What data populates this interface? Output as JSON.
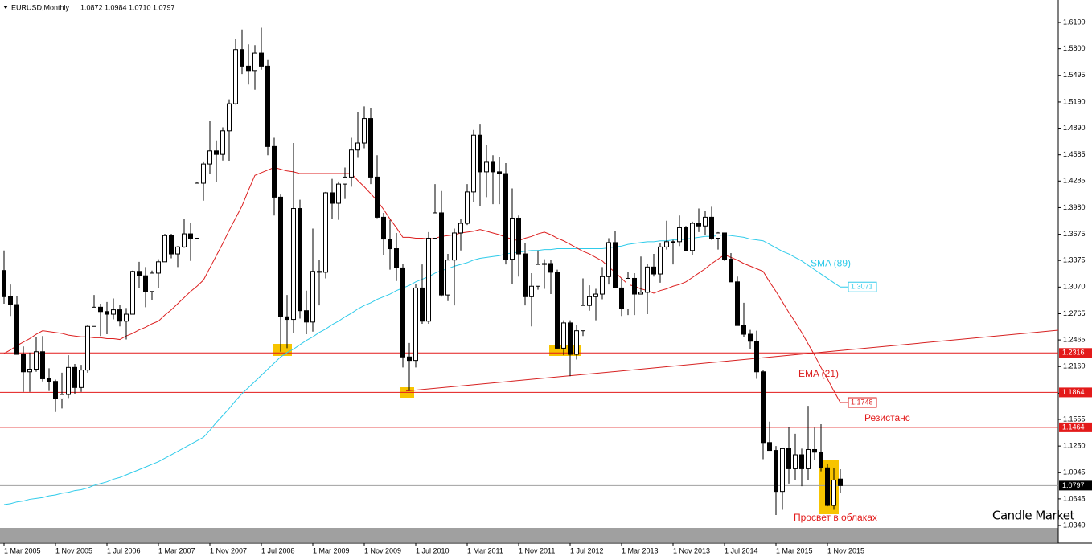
{
  "chart_data": {
    "type": "candlestick",
    "header": {
      "symbol": "EURUSD,Monthly",
      "ohlc": [
        "1.0872",
        "1.0984",
        "1.0710",
        "1.0797"
      ]
    },
    "categories": [
      "1 Mar 2005",
      null,
      null,
      null,
      null,
      null,
      null,
      null,
      "1 Nov 2005",
      null,
      null,
      null,
      null,
      null,
      null,
      null,
      "1 Jul 2006",
      null,
      null,
      null,
      null,
      null,
      null,
      null,
      "1 Mar 2007",
      null,
      null,
      null,
      null,
      null,
      null,
      null,
      "1 Nov 2007",
      null,
      null,
      null,
      null,
      null,
      null,
      null,
      "1 Jul 2008",
      null,
      null,
      null,
      null,
      null,
      null,
      null,
      "1 Mar 2009",
      null,
      null,
      null,
      null,
      null,
      null,
      null,
      "1 Nov 2009",
      null,
      null,
      null,
      null,
      null,
      null,
      null,
      "1 Jul 2010",
      null,
      null,
      null,
      null,
      null,
      null,
      null,
      "1 Mar 2011",
      null,
      null,
      null,
      null,
      null,
      null,
      null,
      "1 Nov 2011",
      null,
      null,
      null,
      null,
      null,
      null,
      null,
      "1 Jul 2012",
      null,
      null,
      null,
      null,
      null,
      null,
      null,
      "1 Mar 2013",
      null,
      null,
      null,
      null,
      null,
      null,
      null,
      "1 Nov 2013",
      null,
      null,
      null,
      null,
      null,
      null,
      null,
      "1 Jul 2014",
      null,
      null,
      null,
      null,
      null,
      null,
      null,
      "1 Mar 2015",
      null,
      null,
      null,
      null,
      null,
      null,
      null,
      "1 Nov 2015",
      null,
      null
    ],
    "candles": [
      [
        1.326,
        1.349,
        1.288,
        1.296
      ],
      [
        1.296,
        1.31,
        1.274,
        1.287
      ],
      [
        1.287,
        1.297,
        1.23,
        1.23
      ],
      [
        1.23,
        1.239,
        1.187,
        1.21
      ],
      [
        1.21,
        1.232,
        1.187,
        1.213
      ],
      [
        1.213,
        1.25,
        1.21,
        1.233
      ],
      [
        1.233,
        1.251,
        1.199,
        1.202
      ],
      [
        1.202,
        1.214,
        1.188,
        1.199
      ],
      [
        1.199,
        1.201,
        1.164,
        1.179
      ],
      [
        1.179,
        1.209,
        1.168,
        1.184
      ],
      [
        1.184,
        1.229,
        1.18,
        1.215
      ],
      [
        1.215,
        1.219,
        1.184,
        1.192
      ],
      [
        1.192,
        1.218,
        1.187,
        1.212
      ],
      [
        1.212,
        1.264,
        1.209,
        1.262
      ],
      [
        1.262,
        1.298,
        1.262,
        1.284
      ],
      [
        1.284,
        1.288,
        1.251,
        1.279
      ],
      [
        1.279,
        1.29,
        1.253,
        1.276
      ],
      [
        1.276,
        1.294,
        1.27,
        1.281
      ],
      [
        1.281,
        1.287,
        1.262,
        1.268
      ],
      [
        1.268,
        1.283,
        1.247,
        1.276
      ],
      [
        1.276,
        1.326,
        1.277,
        1.325
      ],
      [
        1.325,
        1.336,
        1.306,
        1.32
      ],
      [
        1.32,
        1.33,
        1.284,
        1.302
      ],
      [
        1.302,
        1.326,
        1.292,
        1.323
      ],
      [
        1.323,
        1.339,
        1.306,
        1.336
      ],
      [
        1.336,
        1.368,
        1.336,
        1.366
      ],
      [
        1.366,
        1.368,
        1.34,
        1.345
      ],
      [
        1.345,
        1.354,
        1.33,
        1.353
      ],
      [
        1.353,
        1.385,
        1.352,
        1.368
      ],
      [
        1.368,
        1.38,
        1.337,
        1.363
      ],
      [
        1.363,
        1.427,
        1.362,
        1.426
      ],
      [
        1.426,
        1.45,
        1.406,
        1.448
      ],
      [
        1.448,
        1.497,
        1.437,
        1.463
      ],
      [
        1.463,
        1.475,
        1.427,
        1.459
      ],
      [
        1.459,
        1.49,
        1.452,
        1.486
      ],
      [
        1.486,
        1.522,
        1.451,
        1.517
      ],
      [
        1.517,
        1.591,
        1.516,
        1.579
      ],
      [
        1.579,
        1.602,
        1.551,
        1.56
      ],
      [
        1.56,
        1.585,
        1.539,
        1.555
      ],
      [
        1.555,
        1.584,
        1.533,
        1.575
      ],
      [
        1.575,
        1.604,
        1.556,
        1.56
      ],
      [
        1.56,
        1.567,
        1.458,
        1.468
      ],
      [
        1.468,
        1.478,
        1.389,
        1.41
      ],
      [
        1.41,
        1.413,
        1.233,
        1.273
      ],
      [
        1.273,
        1.298,
        1.237,
        1.27
      ],
      [
        1.27,
        1.472,
        1.254,
        1.397
      ],
      [
        1.397,
        1.407,
        1.271,
        1.28
      ],
      [
        1.28,
        1.303,
        1.253,
        1.267
      ],
      [
        1.267,
        1.374,
        1.256,
        1.325
      ],
      [
        1.325,
        1.338,
        1.286,
        1.324
      ],
      [
        1.324,
        1.416,
        1.317,
        1.415
      ],
      [
        1.415,
        1.431,
        1.385,
        1.403
      ],
      [
        1.403,
        1.428,
        1.384,
        1.425
      ],
      [
        1.425,
        1.444,
        1.408,
        1.433
      ],
      [
        1.433,
        1.478,
        1.422,
        1.464
      ],
      [
        1.464,
        1.507,
        1.455,
        1.472
      ],
      [
        1.472,
        1.514,
        1.466,
        1.5
      ],
      [
        1.5,
        1.512,
        1.425,
        1.433
      ],
      [
        1.433,
        1.458,
        1.386,
        1.387
      ],
      [
        1.387,
        1.392,
        1.344,
        1.362
      ],
      [
        1.362,
        1.384,
        1.327,
        1.351
      ],
      [
        1.351,
        1.369,
        1.314,
        1.329
      ],
      [
        1.329,
        1.334,
        1.215,
        1.227
      ],
      [
        1.227,
        1.243,
        1.188,
        1.223
      ],
      [
        1.223,
        1.311,
        1.215,
        1.306
      ],
      [
        1.306,
        1.333,
        1.265,
        1.268
      ],
      [
        1.268,
        1.37,
        1.265,
        1.363
      ],
      [
        1.363,
        1.425,
        1.368,
        1.392
      ],
      [
        1.392,
        1.417,
        1.296,
        1.298
      ],
      [
        1.298,
        1.345,
        1.291,
        1.338
      ],
      [
        1.338,
        1.374,
        1.286,
        1.369
      ],
      [
        1.369,
        1.385,
        1.349,
        1.38
      ],
      [
        1.38,
        1.425,
        1.378,
        1.416
      ],
      [
        1.416,
        1.487,
        1.404,
        1.481
      ],
      [
        1.481,
        1.494,
        1.4,
        1.439
      ],
      [
        1.439,
        1.47,
        1.41,
        1.45
      ],
      [
        1.45,
        1.458,
        1.402,
        1.439
      ],
      [
        1.439,
        1.456,
        1.402,
        1.437
      ],
      [
        1.437,
        1.449,
        1.333,
        1.339
      ],
      [
        1.339,
        1.42,
        1.311,
        1.386
      ],
      [
        1.386,
        1.389,
        1.319,
        1.345
      ],
      [
        1.345,
        1.357,
        1.286,
        1.296
      ],
      [
        1.296,
        1.323,
        1.262,
        1.308
      ],
      [
        1.308,
        1.349,
        1.304,
        1.333
      ],
      [
        1.333,
        1.339,
        1.305,
        1.334
      ],
      [
        1.334,
        1.338,
        1.299,
        1.324
      ],
      [
        1.324,
        1.327,
        1.236,
        1.237
      ],
      [
        1.237,
        1.269,
        1.229,
        1.266
      ],
      [
        1.266,
        1.269,
        1.205,
        1.23
      ],
      [
        1.23,
        1.264,
        1.224,
        1.257
      ],
      [
        1.257,
        1.317,
        1.251,
        1.286
      ],
      [
        1.286,
        1.309,
        1.28,
        1.296
      ],
      [
        1.296,
        1.305,
        1.269,
        1.299
      ],
      [
        1.299,
        1.33,
        1.293,
        1.319
      ],
      [
        1.319,
        1.363,
        1.31,
        1.358
      ],
      [
        1.358,
        1.371,
        1.306,
        1.306
      ],
      [
        1.306,
        1.317,
        1.274,
        1.282
      ],
      [
        1.282,
        1.324,
        1.275,
        1.317
      ],
      [
        1.317,
        1.323,
        1.275,
        1.299
      ],
      [
        1.299,
        1.342,
        1.299,
        1.301
      ],
      [
        1.301,
        1.334,
        1.276,
        1.33
      ],
      [
        1.33,
        1.345,
        1.319,
        1.322
      ],
      [
        1.322,
        1.357,
        1.312,
        1.353
      ],
      [
        1.353,
        1.383,
        1.35,
        1.359
      ],
      [
        1.359,
        1.361,
        1.333,
        1.359
      ],
      [
        1.359,
        1.389,
        1.354,
        1.375
      ],
      [
        1.375,
        1.377,
        1.348,
        1.349
      ],
      [
        1.349,
        1.382,
        1.344,
        1.38
      ],
      [
        1.38,
        1.397,
        1.37,
        1.377
      ],
      [
        1.377,
        1.394,
        1.367,
        1.387
      ],
      [
        1.387,
        1.399,
        1.361,
        1.363
      ],
      [
        1.363,
        1.37,
        1.35,
        1.369
      ],
      [
        1.369,
        1.369,
        1.337,
        1.339
      ],
      [
        1.339,
        1.346,
        1.313,
        1.313
      ],
      [
        1.313,
        1.319,
        1.263,
        1.263
      ],
      [
        1.263,
        1.289,
        1.25,
        1.253
      ],
      [
        1.253,
        1.258,
        1.236,
        1.245
      ],
      [
        1.245,
        1.257,
        1.202,
        1.21
      ],
      [
        1.21,
        1.212,
        1.11,
        1.129
      ],
      [
        1.129,
        1.153,
        1.12,
        1.12
      ],
      [
        1.12,
        1.125,
        1.046,
        1.073
      ],
      [
        1.073,
        1.122,
        1.052,
        1.122
      ],
      [
        1.122,
        1.147,
        1.082,
        1.099
      ],
      [
        1.099,
        1.139,
        1.086,
        1.115
      ],
      [
        1.115,
        1.122,
        1.079,
        1.099
      ],
      [
        1.099,
        1.171,
        1.086,
        1.121
      ],
      [
        1.121,
        1.146,
        1.109,
        1.118
      ],
      [
        1.118,
        1.15,
        1.096,
        1.1
      ],
      [
        1.1,
        1.104,
        1.056,
        1.057
      ],
      [
        1.057,
        1.1,
        1.052,
        1.086
      ],
      [
        1.0872,
        1.0984,
        1.071,
        1.0797
      ]
    ],
    "series": [
      {
        "name": "SMA (89)",
        "color": "#2fcbea",
        "values": [
          1.058,
          1.059,
          1.061,
          1.062,
          1.064,
          1.065,
          1.066,
          1.068,
          1.069,
          1.071,
          1.072,
          1.074,
          1.075,
          1.077,
          1.08,
          1.082,
          1.084,
          1.087,
          1.089,
          1.092,
          1.095,
          1.098,
          1.101,
          1.104,
          1.107,
          1.111,
          1.115,
          1.119,
          1.123,
          1.127,
          1.131,
          1.135,
          1.143,
          1.152,
          1.16,
          1.168,
          1.177,
          1.185,
          1.192,
          1.199,
          1.206,
          1.213,
          1.22,
          1.227,
          1.232,
          1.236,
          1.241,
          1.246,
          1.25,
          1.255,
          1.259,
          1.264,
          1.268,
          1.273,
          1.277,
          1.282,
          1.286,
          1.289,
          1.293,
          1.296,
          1.299,
          1.303,
          1.306,
          1.309,
          1.313,
          1.316,
          1.319,
          1.323,
          1.326,
          1.328,
          1.331,
          1.333,
          1.335,
          1.338,
          1.34,
          1.341,
          1.342,
          1.343,
          1.345,
          1.346,
          1.347,
          1.348,
          1.349,
          1.349,
          1.35,
          1.35,
          1.351,
          1.351,
          1.351,
          1.351,
          1.351,
          1.351,
          1.351,
          1.351,
          1.352,
          1.353,
          1.354,
          1.356,
          1.357,
          1.358,
          1.359,
          1.359,
          1.36,
          1.36,
          1.361,
          1.361,
          1.362,
          1.363,
          1.364,
          1.365,
          1.365,
          1.366,
          1.367,
          1.366,
          1.365,
          1.364,
          1.362,
          1.361,
          1.36,
          1.356,
          1.352,
          1.348,
          1.345,
          1.341,
          1.337,
          1.332,
          1.327,
          1.322,
          1.317,
          1.312,
          1.3071
        ]
      },
      {
        "name": "EMA (21)",
        "color": "#dc1f1f",
        "values": [
          1.231,
          1.235,
          1.24,
          1.244,
          1.248,
          1.253,
          1.257,
          1.256,
          1.255,
          1.254,
          1.252,
          1.251,
          1.25,
          1.25,
          1.249,
          1.249,
          1.248,
          1.248,
          1.247,
          1.251,
          1.254,
          1.258,
          1.261,
          1.265,
          1.268,
          1.275,
          1.281,
          1.288,
          1.295,
          1.302,
          1.308,
          1.315,
          1.329,
          1.343,
          1.357,
          1.372,
          1.386,
          1.4,
          1.418,
          1.435,
          1.438,
          1.441,
          1.444,
          1.442,
          1.44,
          1.439,
          1.437,
          1.437,
          1.437,
          1.437,
          1.437,
          1.437,
          1.437,
          1.437,
          1.437,
          1.429,
          1.422,
          1.414,
          1.406,
          1.396,
          1.385,
          1.375,
          1.364,
          1.364,
          1.363,
          1.363,
          1.362,
          1.363,
          1.365,
          1.366,
          1.367,
          1.369,
          1.37,
          1.371,
          1.373,
          1.371,
          1.369,
          1.367,
          1.364,
          1.362,
          1.36,
          1.363,
          1.365,
          1.368,
          1.37,
          1.367,
          1.363,
          1.36,
          1.356,
          1.352,
          1.348,
          1.345,
          1.341,
          1.337,
          1.33,
          1.324,
          1.317,
          1.31,
          1.308,
          1.305,
          1.303,
          1.3,
          1.303,
          1.305,
          1.308,
          1.31,
          1.313,
          1.318,
          1.323,
          1.328,
          1.334,
          1.339,
          1.344,
          1.341,
          1.338,
          1.334,
          1.331,
          1.328,
          1.325,
          1.313,
          1.302,
          1.29,
          1.278,
          1.267,
          1.255,
          1.242,
          1.229,
          1.215,
          1.202,
          1.188,
          1.1748
        ]
      }
    ],
    "levels": [
      {
        "value": 1.2316,
        "color": "#e31a1a"
      },
      {
        "value": 1.1864,
        "color": "#e31a1a"
      },
      {
        "value": 1.1464,
        "color": "#e31a1a"
      }
    ],
    "trendline": [
      1.188,
      1.2576
    ],
    "annotations": [
      "Резистанс",
      "Просвет в облаках",
      "Candle Market"
    ],
    "ylim": [
      1.0322,
      1.6358
    ],
    "yticks": [
      {
        "value": 1.61,
        "label": "1.6100"
      },
      {
        "value": 1.58,
        "label": "1.5800"
      },
      {
        "value": 1.5495,
        "label": "1.5495"
      },
      {
        "value": 1.519,
        "label": "1.5190"
      },
      {
        "value": 1.489,
        "label": "1.4890"
      },
      {
        "value": 1.4585,
        "label": "1.4585"
      },
      {
        "value": 1.4285,
        "label": "1.4285"
      },
      {
        "value": 1.398,
        "label": "1.3980"
      },
      {
        "value": 1.3675,
        "label": "1.3675"
      },
      {
        "value": 1.3375,
        "label": "1.3375"
      },
      {
        "value": 1.307,
        "label": "1.3070"
      },
      {
        "value": 1.2765,
        "label": "1.2765"
      },
      {
        "value": 1.2465,
        "label": "1.2465"
      },
      {
        "value": 1.216,
        "label": "1.2160"
      },
      {
        "value": 1.1855,
        "label": "1.1855"
      },
      {
        "value": 1.1555,
        "label": "1.1555"
      },
      {
        "value": 1.125,
        "label": "1.1250"
      },
      {
        "value": 1.0945,
        "label": "1.0945"
      },
      {
        "value": 1.0645,
        "label": "1.0645"
      },
      {
        "value": 1.034,
        "label": "1.0340"
      }
    ]
  }
}
